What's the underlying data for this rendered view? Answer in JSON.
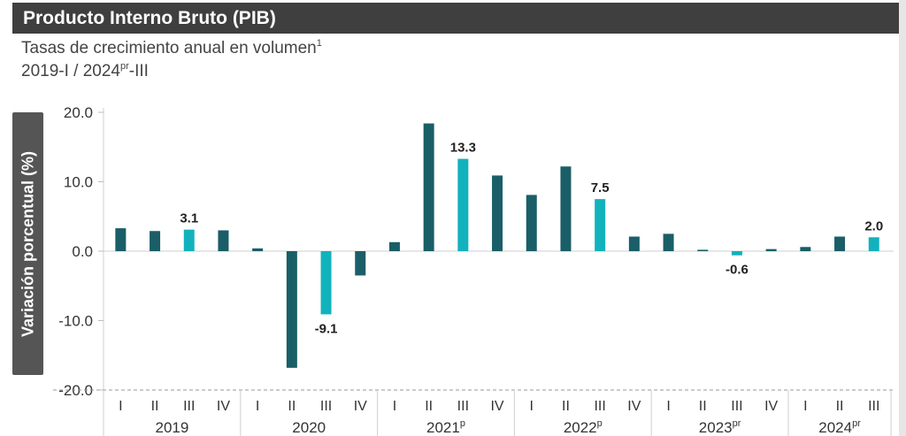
{
  "header": {
    "title": "Producto Interno Bruto (PIB)",
    "subtitle": "Tasas de crecimiento anual en volumen",
    "subtitle_sup": "1",
    "period_start": "2019-I  / 2024",
    "period_sup": "pr",
    "period_end": "-III"
  },
  "colors": {
    "dark_bar": "#1a5e68",
    "highlight_bar": "#12b2bd",
    "axis_box": "#555555",
    "title_bg": "#3f3f3f"
  },
  "chart_data": {
    "type": "bar",
    "title": "Producto Interno Bruto (PIB)",
    "ylabel": "Variación porcentual (%)",
    "ylim": [
      -20,
      20
    ],
    "yticks": [
      "20.0",
      "10.0",
      "0.0",
      "-10.0",
      "-20.0"
    ],
    "ytick_values": [
      20,
      10,
      0,
      -10,
      -20
    ],
    "quarters": [
      "I",
      "II",
      "III",
      "IV",
      "I",
      "II",
      "III",
      "IV",
      "I",
      "II",
      "III",
      "IV",
      "I",
      "II",
      "III",
      "IV",
      "I",
      "II",
      "III",
      "IV",
      "I",
      "II",
      "III"
    ],
    "values": [
      3.3,
      2.9,
      3.1,
      3.0,
      0.4,
      -16.8,
      -9.1,
      -3.5,
      1.3,
      18.4,
      13.3,
      10.9,
      8.1,
      12.2,
      7.5,
      2.1,
      2.5,
      0.2,
      -0.6,
      0.3,
      0.6,
      2.1,
      2.0
    ],
    "highlighted_index": [
      2,
      6,
      10,
      14,
      18,
      22
    ],
    "data_labels": [
      {
        "index": 2,
        "text": "3.1"
      },
      {
        "index": 6,
        "text": "-9.1"
      },
      {
        "index": 10,
        "text": "13.3"
      },
      {
        "index": 14,
        "text": "7.5"
      },
      {
        "index": 18,
        "text": "-0.6"
      },
      {
        "index": 22,
        "text": "2.0"
      }
    ],
    "years": [
      {
        "label": "2019",
        "sup": "",
        "start": 0,
        "count": 4
      },
      {
        "label": "2020",
        "sup": "",
        "start": 4,
        "count": 4
      },
      {
        "label": "2021",
        "sup": "p",
        "start": 8,
        "count": 4
      },
      {
        "label": "2022",
        "sup": "p",
        "start": 12,
        "count": 4
      },
      {
        "label": "2023",
        "sup": "pr",
        "start": 16,
        "count": 4
      },
      {
        "label": "2024",
        "sup": "pr",
        "start": 20,
        "count": 3
      }
    ]
  }
}
